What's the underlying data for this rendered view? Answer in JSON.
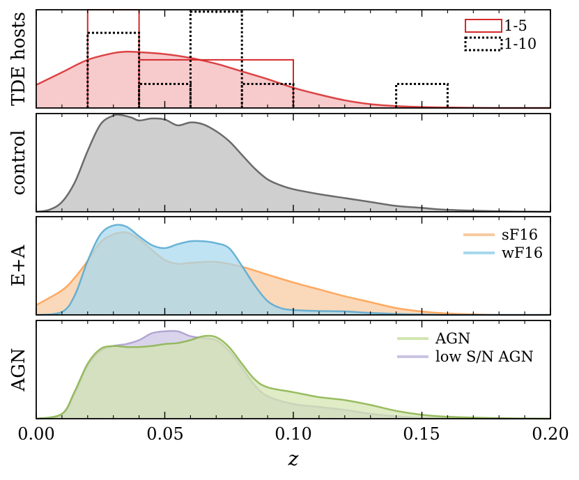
{
  "chart_data": {
    "type": "area",
    "xlabel": "z",
    "xlim": [
      0.0,
      0.2
    ],
    "xticks": [
      "0.00",
      "0.05",
      "0.10",
      "0.15",
      "0.20"
    ],
    "xtick_values": [
      0.0,
      0.05,
      0.1,
      0.15,
      0.2
    ],
    "panels": [
      {
        "ylabel": "TDE hosts",
        "ylim": [
          0,
          1.02
        ],
        "kde": [
          {
            "name": "TDE hosts KDE",
            "color": "#d62728",
            "fill": "#f4b5b8",
            "x": [
              0.0,
              0.01,
              0.02,
              0.03,
              0.035,
              0.04,
              0.05,
              0.06,
              0.07,
              0.08,
              0.09,
              0.1,
              0.11,
              0.12,
              0.13,
              0.14,
              0.15,
              0.16,
              0.18,
              0.2
            ],
            "y": [
              0.24,
              0.37,
              0.5,
              0.57,
              0.585,
              0.58,
              0.56,
              0.52,
              0.46,
              0.38,
              0.3,
              0.21,
              0.14,
              0.08,
              0.04,
              0.02,
              0.01,
              0.005,
              0.0,
              0.0
            ]
          }
        ],
        "histograms": [
          {
            "name": "1-5",
            "style": "solid",
            "color": "#d62728",
            "edges": [
              0.02,
              0.04,
              0.1
            ],
            "heights": [
              1.02,
              0.5
            ]
          },
          {
            "name": "1-10",
            "style": "dotted",
            "color": "#000000",
            "edges": [
              0.02,
              0.04,
              0.06,
              0.08,
              0.1,
              0.14,
              0.16
            ],
            "heights": [
              0.78,
              0.25,
              1.0,
              0.25,
              0.0,
              0.25
            ]
          }
        ],
        "legend": {
          "position": "top-right",
          "entries": [
            "1-5",
            "1-10"
          ]
        }
      },
      {
        "ylabel": "control",
        "ylim": [
          0,
          1.0
        ],
        "kde": [
          {
            "name": "control",
            "color": "#555555",
            "fill": "#bdbdbd",
            "x": [
              0.0,
              0.005,
              0.01,
              0.015,
              0.02,
              0.025,
              0.03,
              0.033,
              0.037,
              0.04,
              0.045,
              0.05,
              0.055,
              0.06,
              0.065,
              0.07,
              0.075,
              0.08,
              0.085,
              0.09,
              0.095,
              0.1,
              0.11,
              0.12,
              0.13,
              0.14,
              0.15,
              0.16,
              0.18,
              0.2
            ],
            "y": [
              0.0,
              0.02,
              0.1,
              0.3,
              0.62,
              0.89,
              0.98,
              0.985,
              0.96,
              0.93,
              0.95,
              0.94,
              0.88,
              0.91,
              0.89,
              0.82,
              0.72,
              0.58,
              0.44,
              0.33,
              0.27,
              0.23,
              0.18,
              0.14,
              0.1,
              0.06,
              0.04,
              0.02,
              0.005,
              0.0
            ]
          }
        ]
      },
      {
        "ylabel": "E+A",
        "ylim": [
          0,
          1.0
        ],
        "kde": [
          {
            "name": "sF16",
            "color": "#ff9d4a",
            "fill": "#f8c9a0",
            "x": [
              0.0,
              0.01,
              0.015,
              0.02,
              0.025,
              0.03,
              0.035,
              0.04,
              0.045,
              0.05,
              0.055,
              0.06,
              0.07,
              0.08,
              0.09,
              0.1,
              0.11,
              0.12,
              0.13,
              0.14,
              0.15,
              0.16,
              0.18,
              0.2
            ],
            "y": [
              0.1,
              0.25,
              0.38,
              0.55,
              0.74,
              0.82,
              0.84,
              0.77,
              0.66,
              0.56,
              0.52,
              0.53,
              0.54,
              0.49,
              0.41,
              0.33,
              0.26,
              0.19,
              0.13,
              0.07,
              0.035,
              0.015,
              0.0,
              0.0
            ]
          },
          {
            "name": "wF16",
            "color": "#55a8d0",
            "fill": "#a6d8ee",
            "x": [
              0.0,
              0.01,
              0.015,
              0.02,
              0.025,
              0.03,
              0.035,
              0.04,
              0.045,
              0.05,
              0.055,
              0.06,
              0.065,
              0.07,
              0.075,
              0.08,
              0.085,
              0.09,
              0.095,
              0.1,
              0.11,
              0.12,
              0.13,
              0.14,
              0.15,
              0.16,
              0.18,
              0.2
            ],
            "y": [
              0.0,
              0.03,
              0.2,
              0.55,
              0.82,
              0.91,
              0.9,
              0.8,
              0.71,
              0.68,
              0.72,
              0.75,
              0.75,
              0.73,
              0.68,
              0.5,
              0.3,
              0.14,
              0.07,
              0.05,
              0.04,
              0.035,
              0.02,
              0.01,
              0.005,
              0.0,
              0.0,
              0.0
            ]
          }
        ],
        "legend": {
          "position": "top-right",
          "entries": [
            "sF16",
            "wF16"
          ]
        }
      },
      {
        "ylabel": "AGN",
        "ylim": [
          0,
          1.0
        ],
        "kde": [
          {
            "name": "low S/N AGN",
            "color": "#a89ccc",
            "fill": "#cbc3e3",
            "x": [
              0.0,
              0.01,
              0.015,
              0.02,
              0.025,
              0.03,
              0.035,
              0.04,
              0.045,
              0.05,
              0.055,
              0.06,
              0.065,
              0.07,
              0.075,
              0.08,
              0.085,
              0.09,
              0.1,
              0.11,
              0.12,
              0.13,
              0.14,
              0.15,
              0.16,
              0.18,
              0.2
            ],
            "y": [
              0.0,
              0.04,
              0.26,
              0.54,
              0.69,
              0.74,
              0.76,
              0.8,
              0.87,
              0.89,
              0.89,
              0.84,
              0.82,
              0.8,
              0.69,
              0.52,
              0.34,
              0.23,
              0.15,
              0.12,
              0.09,
              0.05,
              0.025,
              0.01,
              0.005,
              0.0,
              0.0
            ]
          },
          {
            "name": "AGN",
            "color": "#8ab34a",
            "fill": "#d2e5b0",
            "x": [
              0.0,
              0.01,
              0.015,
              0.02,
              0.025,
              0.03,
              0.035,
              0.04,
              0.045,
              0.05,
              0.055,
              0.06,
              0.065,
              0.07,
              0.075,
              0.08,
              0.085,
              0.09,
              0.1,
              0.11,
              0.12,
              0.13,
              0.14,
              0.15,
              0.16,
              0.18,
              0.2
            ],
            "y": [
              0.0,
              0.05,
              0.28,
              0.56,
              0.71,
              0.74,
              0.73,
              0.73,
              0.74,
              0.76,
              0.77,
              0.8,
              0.84,
              0.83,
              0.73,
              0.56,
              0.4,
              0.32,
              0.27,
              0.22,
              0.19,
              0.14,
              0.08,
              0.04,
              0.02,
              0.005,
              0.0
            ]
          }
        ],
        "legend": {
          "position": "top-right",
          "entries": [
            "AGN",
            "low S/N AGN"
          ]
        }
      }
    ]
  }
}
